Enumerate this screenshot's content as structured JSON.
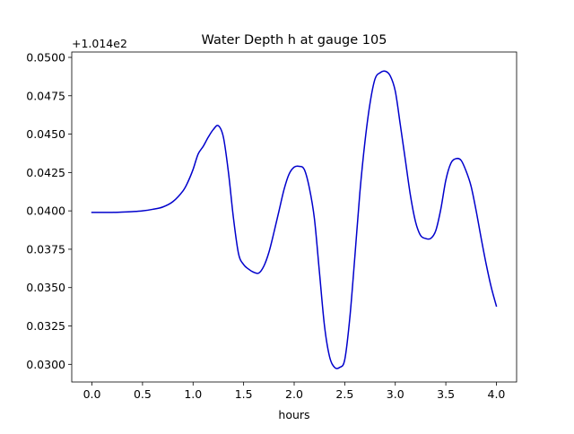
{
  "chart_data": {
    "type": "line",
    "title": "Water Depth h at gauge 105",
    "xlabel": "hours",
    "ylabel": "",
    "offset_text": "+1.014e2",
    "xlim": [
      -0.2,
      4.2
    ],
    "ylim": [
      0.02885,
      0.05035
    ],
    "xticks": [
      0.0,
      0.5,
      1.0,
      1.5,
      2.0,
      2.5,
      3.0,
      3.5,
      4.0
    ],
    "xtick_labels": [
      "0.0",
      "0.5",
      "1.0",
      "1.5",
      "2.0",
      "2.5",
      "3.0",
      "3.5",
      "4.0"
    ],
    "yticks": [
      0.03,
      0.0325,
      0.035,
      0.0375,
      0.04,
      0.0425,
      0.045,
      0.0475,
      0.05
    ],
    "ytick_labels": [
      "0.0300",
      "0.0325",
      "0.0350",
      "0.0375",
      "0.0400",
      "0.0425",
      "0.0450",
      "0.0475",
      "0.0500"
    ],
    "grid": false,
    "legend": false,
    "line_color": "#0000cc",
    "series": [
      {
        "x": [
          0.0,
          0.1,
          0.2,
          0.3,
          0.4,
          0.5,
          0.6,
          0.7,
          0.8,
          0.9,
          0.95,
          1.0,
          1.05,
          1.1,
          1.15,
          1.2,
          1.25,
          1.3,
          1.35,
          1.4,
          1.45,
          1.5,
          1.55,
          1.6,
          1.65,
          1.7,
          1.75,
          1.8,
          1.85,
          1.9,
          1.95,
          2.0,
          2.05,
          2.1,
          2.15,
          2.2,
          2.25,
          2.3,
          2.35,
          2.4,
          2.45,
          2.5,
          2.55,
          2.6,
          2.65,
          2.7,
          2.75,
          2.8,
          2.85,
          2.9,
          2.95,
          3.0,
          3.05,
          3.1,
          3.15,
          3.2,
          3.25,
          3.3,
          3.35,
          3.4,
          3.45,
          3.5,
          3.55,
          3.6,
          3.65,
          3.7,
          3.75,
          3.8,
          3.85,
          3.9,
          3.95,
          4.0
        ],
        "y": [
          0.0399,
          0.0399,
          0.0399,
          0.03992,
          0.03995,
          0.04,
          0.0401,
          0.04025,
          0.0406,
          0.0413,
          0.0419,
          0.0427,
          0.0437,
          0.0442,
          0.0448,
          0.0453,
          0.04555,
          0.0448,
          0.0425,
          0.0395,
          0.0372,
          0.0365,
          0.0362,
          0.036,
          0.03595,
          0.0364,
          0.0373,
          0.0386,
          0.04,
          0.0414,
          0.0424,
          0.04285,
          0.0429,
          0.0427,
          0.0415,
          0.0395,
          0.036,
          0.0325,
          0.0305,
          0.0298,
          0.0298,
          0.0303,
          0.033,
          0.037,
          0.0412,
          0.0445,
          0.047,
          0.0486,
          0.049,
          0.0491,
          0.0488,
          0.0478,
          0.0456,
          0.0433,
          0.041,
          0.0393,
          0.0384,
          0.0382,
          0.0382,
          0.0387,
          0.0401,
          0.042,
          0.0431,
          0.0434,
          0.0433,
          0.0426,
          0.0416,
          0.04,
          0.0382,
          0.0365,
          0.035,
          0.0338
        ]
      }
    ]
  }
}
